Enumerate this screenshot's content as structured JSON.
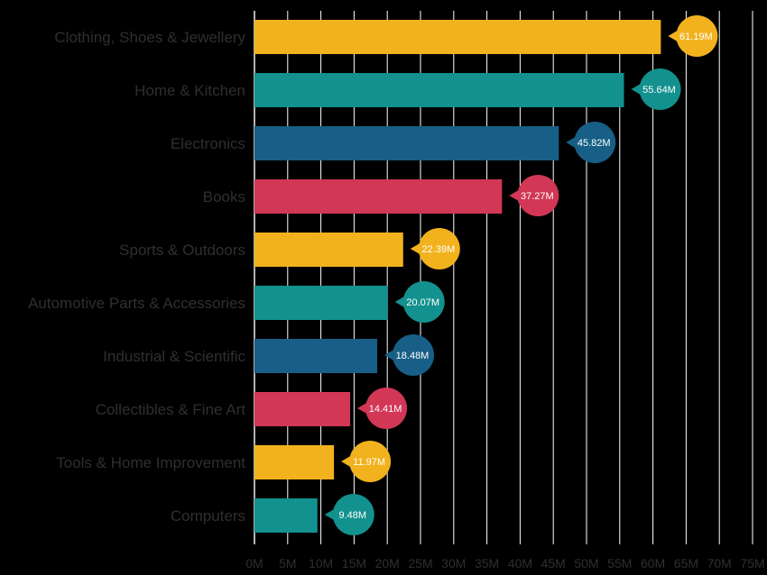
{
  "chart_data": {
    "type": "bar",
    "orientation": "horizontal",
    "categories": [
      "Clothing, Shoes & Jewellery",
      "Home & Kitchen",
      "Electronics",
      "Books",
      "Sports & Outdoors",
      "Automotive Parts & Accessories",
      "Industrial & Scientific",
      "Collectibles & Fine Art",
      "Tools & Home Improvement",
      "Computers"
    ],
    "values": [
      61.19,
      55.64,
      45.82,
      37.27,
      22.39,
      20.07,
      18.48,
      14.41,
      11.97,
      9.48
    ],
    "value_labels": [
      "61.19M",
      "55.64M",
      "45.82M",
      "37.27M",
      "22.39M",
      "20.07M",
      "18.48M",
      "14.41M",
      "11.97M",
      "9.48M"
    ],
    "xticks": [
      0,
      5,
      10,
      15,
      20,
      25,
      30,
      35,
      40,
      45,
      50,
      55,
      60,
      65,
      70,
      75
    ],
    "xtick_labels": [
      "0M",
      "5M",
      "10M",
      "15M",
      "20M",
      "25M",
      "30M",
      "35M",
      "40M",
      "45M",
      "50M",
      "55M",
      "60M",
      "65M",
      "70M",
      "75M"
    ],
    "xlim": [
      0,
      75
    ],
    "grid": "vertical",
    "bar_colors": [
      "#f2b21e",
      "#13918e",
      "#175f86",
      "#d23756",
      "#f2b21e",
      "#13918e",
      "#175f86",
      "#d23756",
      "#f2b21e",
      "#13918e"
    ],
    "background": "#000000",
    "grid_color": "#ffffff",
    "label_color": "#2f2f2f",
    "title": "",
    "xlabel": "",
    "ylabel": ""
  }
}
